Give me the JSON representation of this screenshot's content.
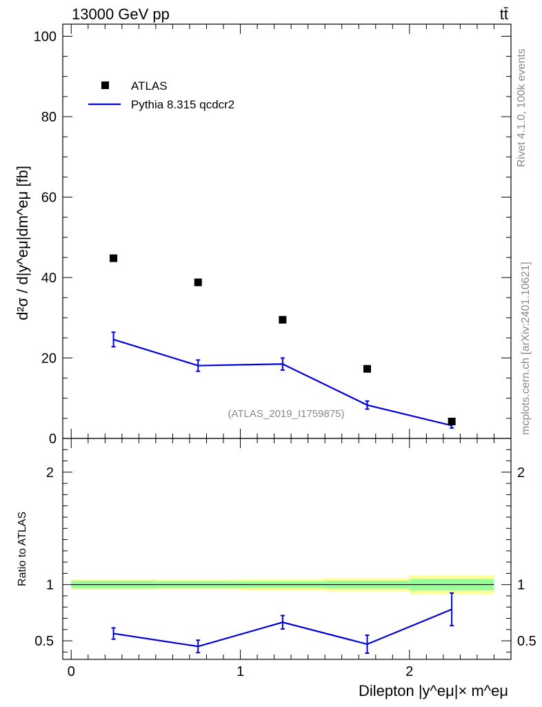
{
  "header": {
    "energy_label": "13000 GeV pp",
    "process_label": "tt̄"
  },
  "side_text": {
    "rivet": "Rivet 4.1.0,  100k events",
    "mcplots": "mcplots.cern.ch [arXiv:2401.10621]"
  },
  "chart_data": [
    {
      "type": "scatter",
      "panel": "main",
      "ylabel": "d²σ / d|y^eμ|dm^eμ [fb]",
      "ylim": [
        0,
        103
      ],
      "yticks": [
        0,
        20,
        40,
        60,
        80,
        100
      ],
      "analysis_label": "(ATLAS_2019_I1759875)",
      "legend": {
        "placement": "top-left",
        "entries": [
          "ATLAS",
          "Pythia 8.315 qcdcr2"
        ]
      },
      "x_bins": [
        [
          0,
          0.5
        ],
        [
          0.5,
          1.0
        ],
        [
          1.0,
          1.5
        ],
        [
          1.5,
          2.0
        ],
        [
          2.0,
          2.5
        ]
      ],
      "series": [
        {
          "name": "ATLAS",
          "style": "marker",
          "x": [
            0.25,
            0.75,
            1.25,
            1.75,
            2.25
          ],
          "values": [
            44.8,
            38.8,
            29.5,
            17.3,
            4.2
          ]
        },
        {
          "name": "Pythia 8.315 qcdcr2",
          "style": "line",
          "x": [
            0.25,
            0.75,
            1.25,
            1.75,
            2.25
          ],
          "values": [
            24.6,
            18.1,
            18.5,
            8.3,
            3.2
          ],
          "errors": [
            1.8,
            1.4,
            1.5,
            1.0,
            0.6
          ]
        }
      ]
    },
    {
      "type": "line",
      "panel": "ratio",
      "xlabel": "Dilepton |y^eμ|× m^eμ",
      "ylabel": "Ratio to ATLAS",
      "xlim": [
        -0.05,
        2.6
      ],
      "ylim": [
        0.335,
        2.3
      ],
      "xticks": [
        0,
        1,
        2
      ],
      "yticks": [
        0.5,
        1,
        2
      ],
      "reference_bands": {
        "green_halfwidth": [
          0.035,
          0.03,
          0.03,
          0.035,
          0.05
        ],
        "yellow_halfwidth": [
          0.045,
          0.045,
          0.05,
          0.06,
          0.085
        ]
      },
      "series": [
        {
          "name": "Pythia 8.315 qcdcr2",
          "x": [
            0.25,
            0.75,
            1.25,
            1.75,
            2.25
          ],
          "values": [
            0.565,
            0.45,
            0.665,
            0.47,
            0.78
          ],
          "errors": [
            0.05,
            0.055,
            0.06,
            0.08,
            0.145
          ]
        }
      ]
    }
  ]
}
